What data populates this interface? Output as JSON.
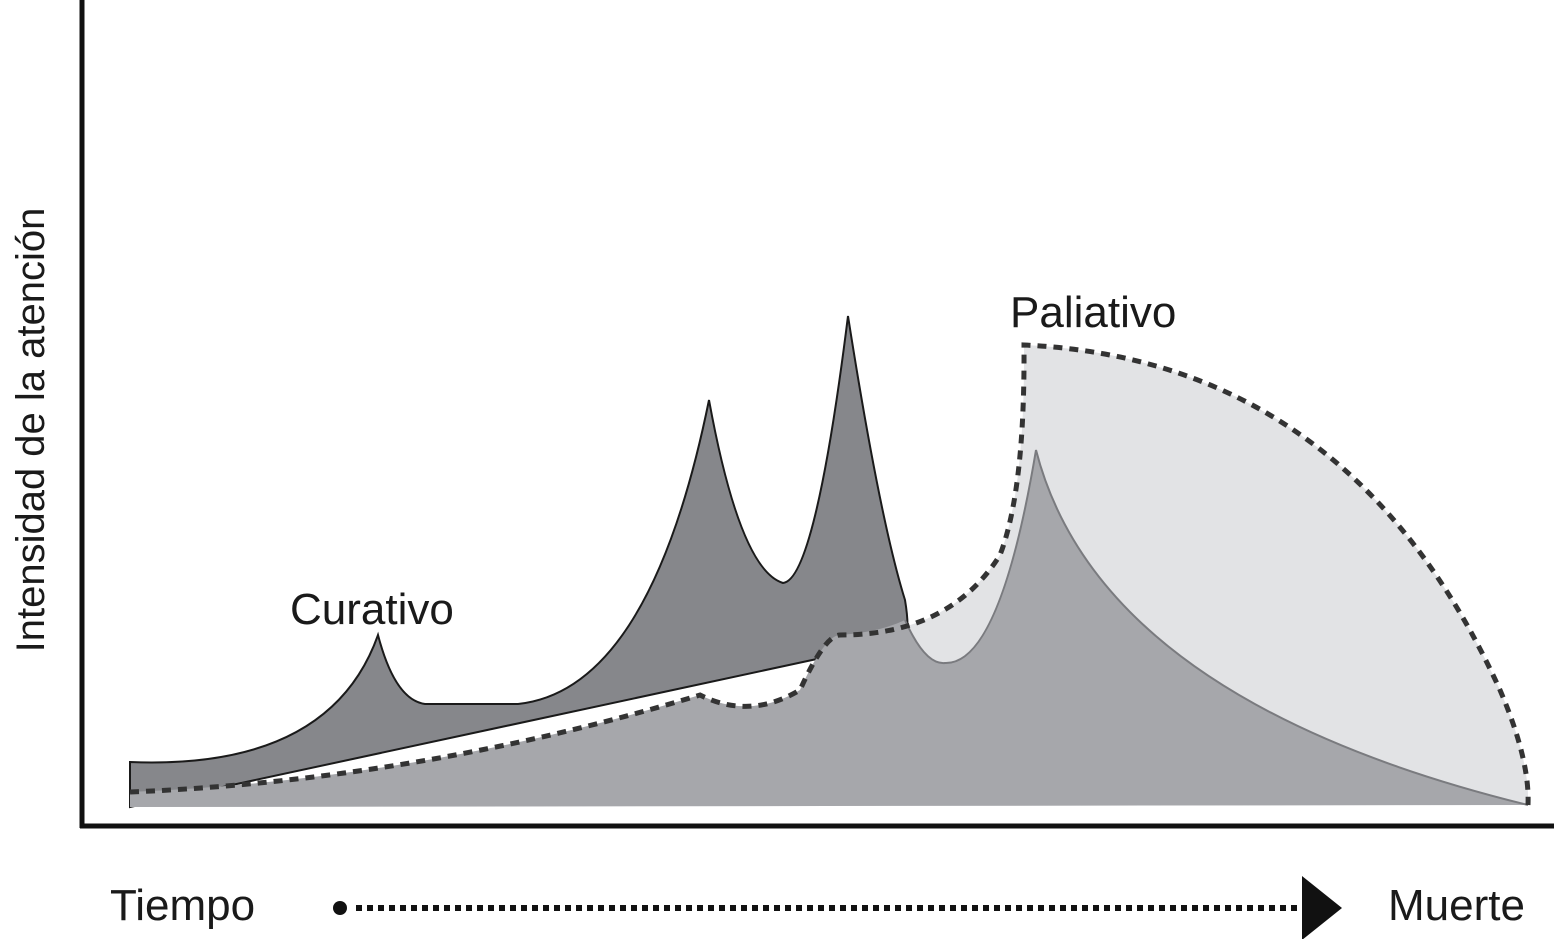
{
  "curves": {
    "curative_label": "Curativo",
    "palliative_label": "Paliativo"
  },
  "axes": {
    "y_label": "Intensidad de la atención",
    "time_label": "Tiempo",
    "death_label": "Muerte"
  },
  "colors": {
    "curative_fill": "#86878b",
    "palliative_inner_fill": "#a6a7ab",
    "palliative_outer_fill": "#e2e3e5",
    "axis": "#111111",
    "dashed": "#333333"
  }
}
